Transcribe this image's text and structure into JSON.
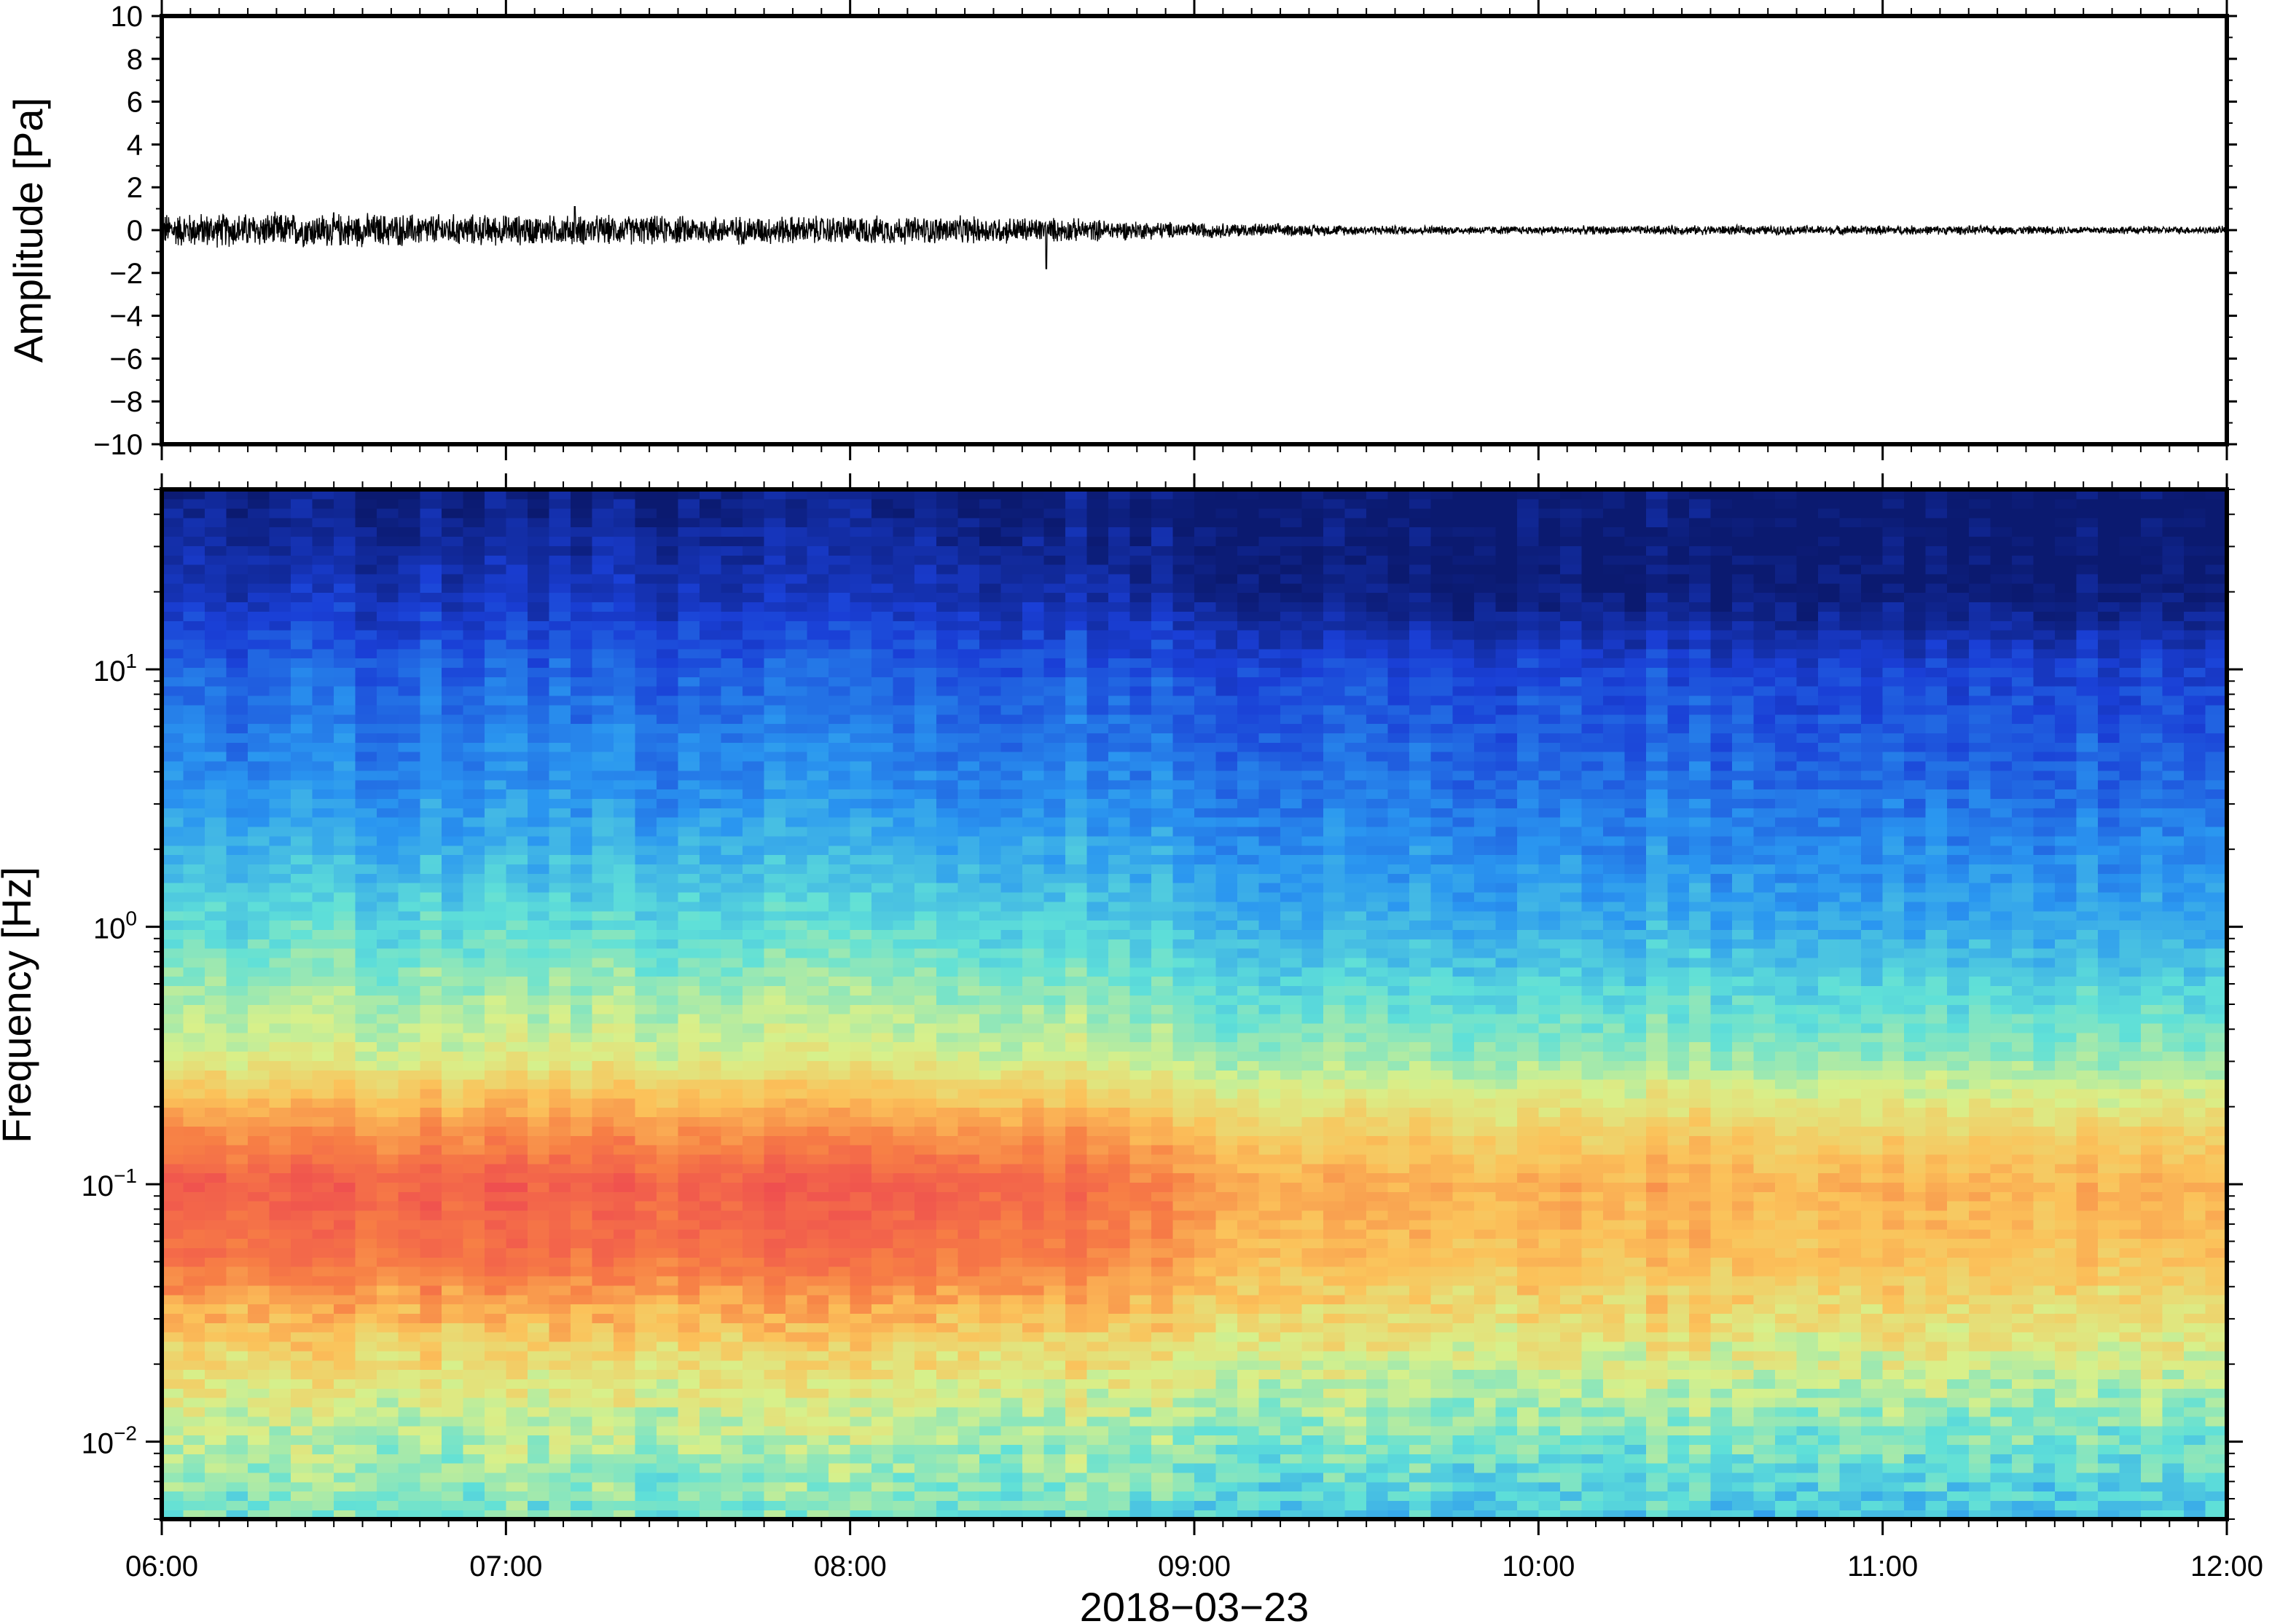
{
  "chart_data": [
    {
      "type": "line",
      "panel": "waveform",
      "ylabel": "Amplitude [Pa]",
      "ylim": [
        -10,
        10
      ],
      "yticks": [
        10,
        8,
        6,
        4,
        2,
        0,
        -2,
        -4,
        -6,
        -8,
        -10
      ],
      "ytick_labels": [
        "10",
        "8",
        "6",
        "4",
        "2",
        "0",
        "−2",
        "−4",
        "−6",
        "−8",
        "−10"
      ],
      "x_range": [
        "06:00",
        "12:00"
      ],
      "series": [
        {
          "x_hours": [
            6.0,
            6.5,
            7.0,
            7.5,
            8.0,
            8.5,
            8.9,
            9.5,
            10.0,
            10.5,
            11.0,
            11.5,
            12.0
          ],
          "envelope_pa": [
            0.9,
            0.9,
            0.8,
            0.75,
            0.75,
            0.7,
            0.45,
            0.25,
            0.22,
            0.25,
            0.25,
            0.22,
            0.2
          ],
          "peak_pa": [
            {
              "x_hours": 7.2,
              "value": 1.1
            },
            {
              "x_hours": 8.57,
              "value": -1.8
            }
          ]
        }
      ],
      "line_color": "#000000"
    },
    {
      "type": "heatmap",
      "panel": "spectrogram",
      "ylabel": "Frequency [Hz]",
      "yscale": "log",
      "ylim": [
        0.005,
        50
      ],
      "yticks": [
        0.01,
        0.1,
        1,
        10
      ],
      "ytick_labels": [
        {
          "base": "10",
          "exp": "−2"
        },
        {
          "base": "10",
          "exp": "−1"
        },
        {
          "base": "10",
          "exp": "0"
        },
        {
          "base": "10",
          "exp": "1"
        }
      ],
      "xlabel": "2018−03−23",
      "xticks": [
        "06:00",
        "07:00",
        "08:00",
        "09:00",
        "10:00",
        "11:00",
        "12:00"
      ],
      "x_range": [
        "06:00",
        "12:00"
      ],
      "colormap": "rainbow: navy (low) → blue → cyan → yellow → red (high)",
      "colormap_stops": [
        "#0b1a70",
        "#1a3fd6",
        "#2a96f0",
        "#5fe0d8",
        "#d8f08a",
        "#fbc25a",
        "#f77f45",
        "#ef4f4f"
      ],
      "power_profile": {
        "log10_freq": [
          1.7,
          1.3,
          1.0,
          0.5,
          0.0,
          -0.5,
          -0.8,
          -1.0,
          -1.3,
          -1.6,
          -1.9,
          -2.3
        ],
        "relative_power_early": [
          0.02,
          0.1,
          0.2,
          0.28,
          0.42,
          0.58,
          0.82,
          0.95,
          0.88,
          0.68,
          0.55,
          0.45
        ],
        "relative_power_late": [
          0.0,
          0.02,
          0.16,
          0.24,
          0.34,
          0.5,
          0.68,
          0.76,
          0.72,
          0.62,
          0.5,
          0.38
        ]
      }
    }
  ]
}
